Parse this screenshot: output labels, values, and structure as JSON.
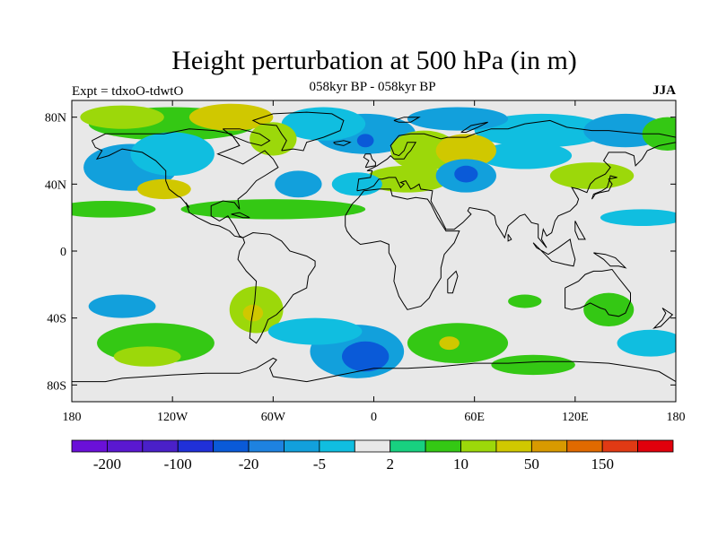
{
  "figure": {
    "title": "Height perturbation at 500 hPa (in m)",
    "subtitle": "058kyr BP - 058kyr BP",
    "experiment_label": "Expt = tdxoO-tdwtO",
    "season": "JJA"
  },
  "map": {
    "projection": "cylindrical-equidistant",
    "lon_range": [
      -180,
      180
    ],
    "lat_range": [
      -90,
      90
    ],
    "background_color": "#e8e8e8",
    "lat_ticks": [
      {
        "value": 80,
        "label": "80N"
      },
      {
        "value": 40,
        "label": "40N"
      },
      {
        "value": 0,
        "label": "0"
      },
      {
        "value": -40,
        "label": "40S"
      },
      {
        "value": -80,
        "label": "80S"
      }
    ],
    "lon_ticks": [
      {
        "value": -180,
        "label": "180"
      },
      {
        "value": -120,
        "label": "120W"
      },
      {
        "value": -60,
        "label": "60W"
      },
      {
        "value": 0,
        "label": "0"
      },
      {
        "value": 60,
        "label": "60E"
      },
      {
        "value": 120,
        "label": "120E"
      },
      {
        "value": 180,
        "label": "180"
      }
    ],
    "anomalies": [
      {
        "lon": -120,
        "lat": 76,
        "rx": 50,
        "ry": 10,
        "v": 7
      },
      {
        "lon": -150,
        "lat": 80,
        "rx": 25,
        "ry": 7,
        "v": 12
      },
      {
        "lon": -85,
        "lat": 80,
        "rx": 25,
        "ry": 8,
        "v": 35
      },
      {
        "lon": -60,
        "lat": 67,
        "rx": 14,
        "ry": 10,
        "v": 12
      },
      {
        "lon": -30,
        "lat": 76,
        "rx": 25,
        "ry": 10,
        "v": -4
      },
      {
        "lon": -5,
        "lat": 70,
        "rx": 30,
        "ry": 12,
        "v": -10
      },
      {
        "lon": -5,
        "lat": 66,
        "rx": 5,
        "ry": 4,
        "v": -50
      },
      {
        "lon": 50,
        "lat": 79,
        "rx": 30,
        "ry": 7,
        "v": -8
      },
      {
        "lon": 100,
        "lat": 72,
        "rx": 40,
        "ry": 10,
        "v": -5
      },
      {
        "lon": 150,
        "lat": 72,
        "rx": 25,
        "ry": 10,
        "v": -8
      },
      {
        "lon": 175,
        "lat": 70,
        "rx": 15,
        "ry": 10,
        "v": 8
      },
      {
        "lon": 30,
        "lat": 60,
        "rx": 20,
        "ry": 12,
        "v": 15
      },
      {
        "lon": 55,
        "lat": 60,
        "rx": 18,
        "ry": 10,
        "v": 25
      },
      {
        "lon": 20,
        "lat": 43,
        "rx": 25,
        "ry": 8,
        "v": 12
      },
      {
        "lon": 55,
        "lat": 45,
        "rx": 18,
        "ry": 10,
        "v": -10
      },
      {
        "lon": 55,
        "lat": 46,
        "rx": 7,
        "ry": 5,
        "v": -25
      },
      {
        "lon": 130,
        "lat": 45,
        "rx": 25,
        "ry": 8,
        "v": 12
      },
      {
        "lon": 90,
        "lat": 57,
        "rx": 28,
        "ry": 8,
        "v": -4
      },
      {
        "lon": -145,
        "lat": 50,
        "rx": 28,
        "ry": 14,
        "v": -7
      },
      {
        "lon": -120,
        "lat": 58,
        "rx": 25,
        "ry": 13,
        "v": -4
      },
      {
        "lon": -125,
        "lat": 37,
        "rx": 16,
        "ry": 6,
        "v": 25
      },
      {
        "lon": -45,
        "lat": 40,
        "rx": 14,
        "ry": 8,
        "v": -8
      },
      {
        "lon": -10,
        "lat": 40,
        "rx": 15,
        "ry": 7,
        "v": -4
      },
      {
        "lon": -160,
        "lat": 25,
        "rx": 30,
        "ry": 5,
        "v": 7
      },
      {
        "lon": -60,
        "lat": 25,
        "rx": 55,
        "ry": 6,
        "v": 6
      },
      {
        "lon": 160,
        "lat": 20,
        "rx": 25,
        "ry": 5,
        "v": -4
      },
      {
        "lon": -150,
        "lat": -33,
        "rx": 20,
        "ry": 7,
        "v": -7
      },
      {
        "lon": -130,
        "lat": -55,
        "rx": 35,
        "ry": 12,
        "v": 8
      },
      {
        "lon": -135,
        "lat": -63,
        "rx": 20,
        "ry": 6,
        "v": 15
      },
      {
        "lon": -70,
        "lat": -35,
        "rx": 16,
        "ry": 14,
        "v": 15
      },
      {
        "lon": -72,
        "lat": -37,
        "rx": 6,
        "ry": 5,
        "v": 35
      },
      {
        "lon": -35,
        "lat": -48,
        "rx": 28,
        "ry": 8,
        "v": -5
      },
      {
        "lon": -10,
        "lat": -60,
        "rx": 28,
        "ry": 16,
        "v": -10
      },
      {
        "lon": -5,
        "lat": -63,
        "rx": 14,
        "ry": 9,
        "v": -25
      },
      {
        "lon": 50,
        "lat": -55,
        "rx": 30,
        "ry": 12,
        "v": 8
      },
      {
        "lon": 45,
        "lat": -55,
        "rx": 6,
        "ry": 4,
        "v": 25
      },
      {
        "lon": 95,
        "lat": -68,
        "rx": 25,
        "ry": 6,
        "v": 7
      },
      {
        "lon": 140,
        "lat": -35,
        "rx": 15,
        "ry": 10,
        "v": 8
      },
      {
        "lon": 165,
        "lat": -55,
        "rx": 20,
        "ry": 8,
        "v": -5
      },
      {
        "lon": 90,
        "lat": -30,
        "rx": 10,
        "ry": 4,
        "v": 5
      }
    ]
  },
  "colorbar": {
    "colors": [
      "#6a10d8",
      "#5a18d0",
      "#4a20c8",
      "#2030d8",
      "#0a5ad8",
      "#1e82e0",
      "#12a0dc",
      "#10bee0",
      "#e8e8e8",
      "#18d080",
      "#34c814",
      "#9cd80a",
      "#d0c800",
      "#d89a00",
      "#e06a00",
      "#e03a14",
      "#e0000c"
    ],
    "levels": [
      -200,
      -150,
      -100,
      -50,
      -20,
      -10,
      -5,
      -2,
      2,
      5,
      10,
      20,
      50,
      100,
      150,
      200
    ],
    "labels": [
      {
        "text": "-200",
        "boundary": 1
      },
      {
        "text": "-100",
        "boundary": 3
      },
      {
        "text": "-20",
        "boundary": 5
      },
      {
        "text": "-5",
        "boundary": 7
      },
      {
        "text": "2",
        "boundary": 9
      },
      {
        "text": "10",
        "boundary": 11
      },
      {
        "text": "50",
        "boundary": 13
      },
      {
        "text": "150",
        "boundary": 15
      }
    ]
  }
}
